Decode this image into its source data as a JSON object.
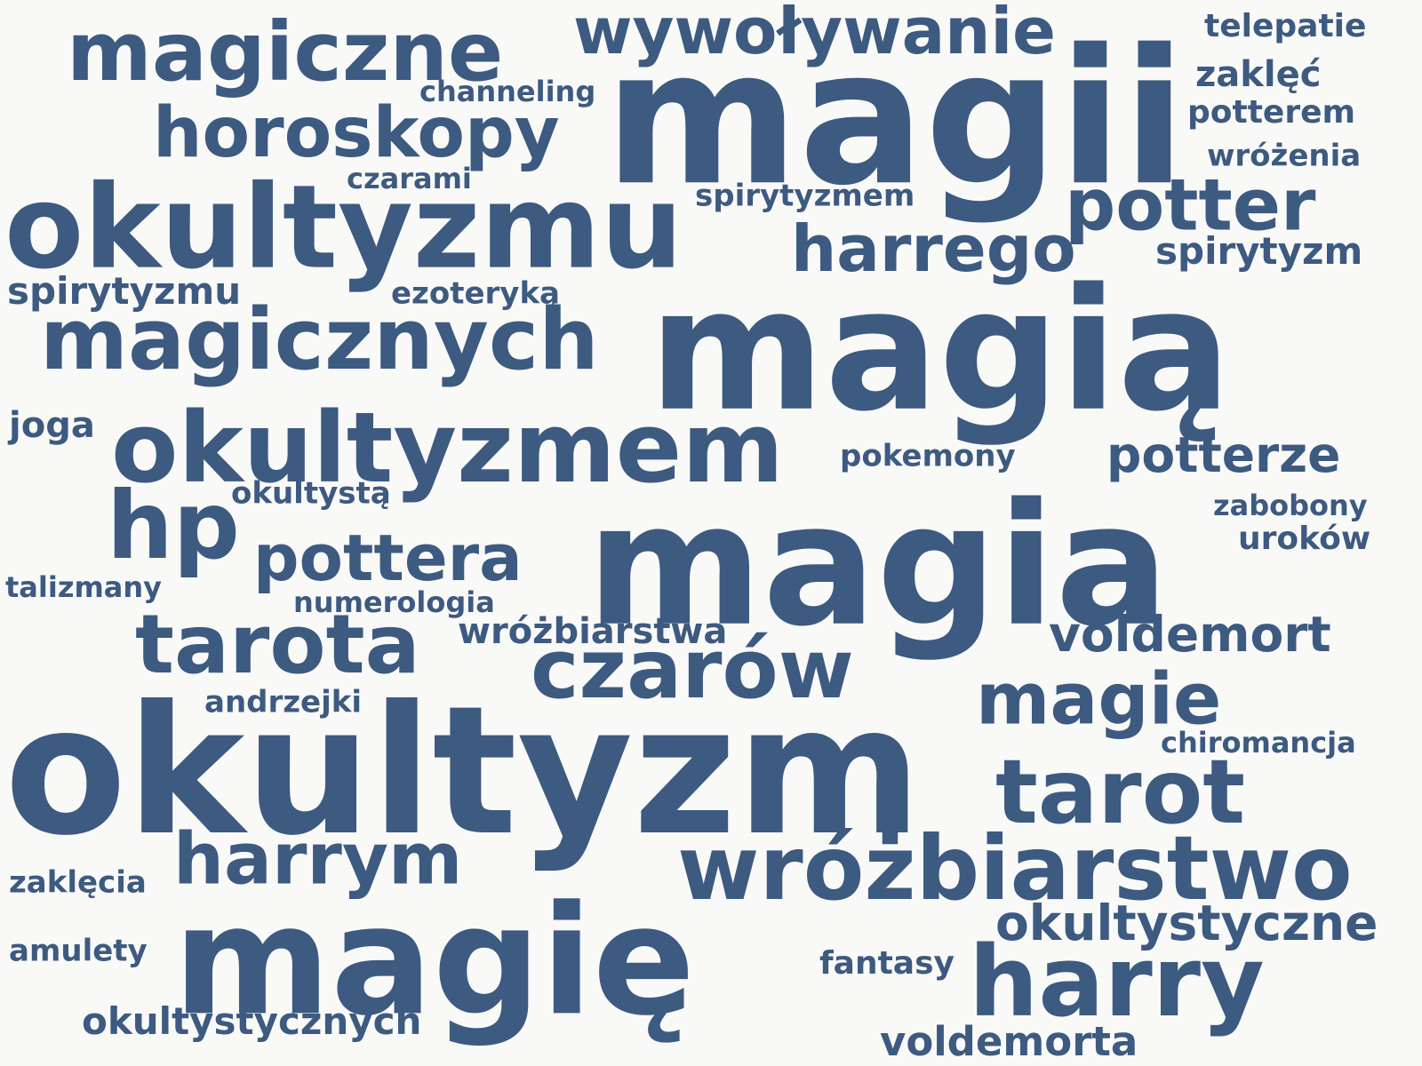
{
  "text_color": "#3d5a80",
  "background_color": "#f9f9f8",
  "words": [
    "magii",
    "magią",
    "magia",
    "okultyzm",
    "magię",
    "okultyzmu",
    "okultyzmem",
    "magiczne",
    "magicznych",
    "wywoływanie",
    "horoskopy",
    "potter",
    "harrego",
    "tarota",
    "czarów",
    "pottera",
    "hp",
    "tarot",
    "wróżbiarstwo",
    "harrym",
    "harry",
    "magie",
    "voldemort",
    "potterze",
    "okultystyczne",
    "spirytyzm",
    "okultystycznych",
    "voldemorta",
    "telepatie",
    "zaklęć",
    "potterem",
    "wróżenia",
    "channeling",
    "czarami",
    "spirytyzmem",
    "spirytyzmu",
    "ezoteryką",
    "joga",
    "pokemony",
    "okultystą",
    "zabobony",
    "uroków",
    "talizmany",
    "numerologia",
    "wróżbiarstwa",
    "andrzejki",
    "chiromancja",
    "zaklęcia",
    "amulety",
    "fantasy"
  ]
}
